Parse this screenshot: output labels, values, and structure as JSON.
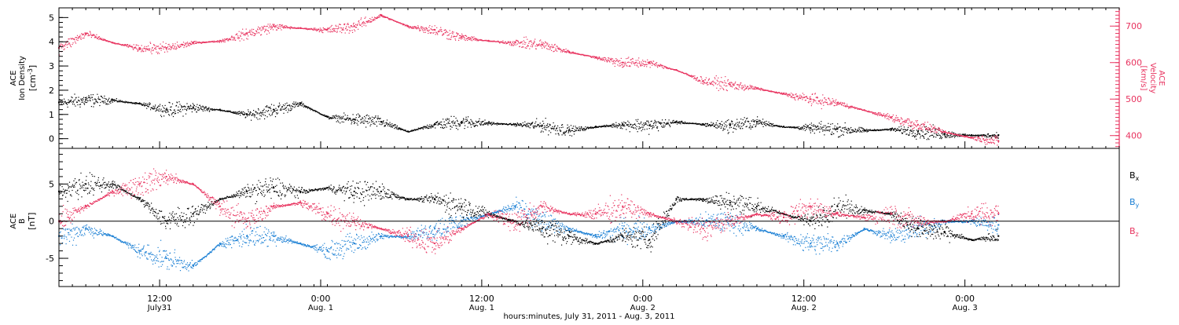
{
  "chart_data": [
    {
      "type": "scatter",
      "panel": "plasma",
      "left_axis": {
        "label_line1": "ACE",
        "label_line2": "Ion Density",
        "units": "[cm",
        "units_sup": "-3",
        "units_end": "]",
        "ylim": [
          -0.4,
          5.4
        ],
        "ticks": [
          "0",
          "1",
          "2",
          "3",
          "4",
          "5"
        ],
        "tick_values": [
          0,
          1,
          2,
          3,
          4,
          5
        ],
        "color": "#000000"
      },
      "right_axis": {
        "label_line1": "ACE",
        "label_line2": "Velocity",
        "units": "[km/s]",
        "ylim": [
          365,
          750
        ],
        "ticks": [
          "400",
          "500",
          "600",
          "700"
        ],
        "tick_values": [
          400,
          500,
          600,
          700
        ],
        "color": "#e8335f"
      },
      "series": [
        {
          "axis": "left",
          "color": "#000000",
          "x": [
            0,
            2,
            4,
            6,
            8,
            10,
            12,
            14,
            16,
            18,
            20,
            22,
            24,
            26,
            28,
            30,
            32,
            34,
            36,
            38,
            40,
            42,
            44,
            46,
            48,
            50,
            52,
            54,
            56,
            58,
            60,
            62,
            64,
            66,
            68,
            70
          ],
          "y": [
            1.5,
            1.6,
            1.6,
            1.45,
            1.2,
            1.3,
            1.2,
            1.0,
            1.2,
            1.45,
            0.9,
            0.8,
            0.7,
            0.3,
            0.6,
            0.7,
            0.65,
            0.6,
            0.55,
            0.35,
            0.5,
            0.6,
            0.55,
            0.7,
            0.6,
            0.55,
            0.7,
            0.5,
            0.45,
            0.4,
            0.35,
            0.4,
            0.3,
            0.2,
            0.15,
            0.15
          ]
        },
        {
          "axis": "right",
          "color": "#e8335f",
          "x": [
            0,
            2,
            4,
            6,
            8,
            10,
            12,
            14,
            16,
            18,
            20,
            22,
            24,
            26,
            28,
            30,
            32,
            34,
            36,
            38,
            40,
            42,
            44,
            46,
            48,
            50,
            52,
            54,
            56,
            58,
            60,
            62,
            64,
            66,
            68,
            70
          ],
          "y": [
            640,
            680,
            655,
            640,
            640,
            655,
            660,
            680,
            700,
            695,
            690,
            700,
            730,
            700,
            690,
            670,
            660,
            655,
            650,
            630,
            615,
            600,
            600,
            580,
            550,
            540,
            530,
            515,
            500,
            490,
            470,
            450,
            430,
            410,
            395,
            385
          ]
        }
      ]
    },
    {
      "type": "scatter",
      "panel": "magnetic-field",
      "left_axis": {
        "label_line1": "ACE",
        "label_line2": "B",
        "units": "[nT]",
        "ylim": [
          -8.8,
          9.8
        ],
        "ticks": [
          "-5",
          "0",
          "5"
        ],
        "tick_values": [
          -5,
          0,
          5
        ],
        "color": "#000000"
      },
      "zero_line": true,
      "legend": [
        {
          "label": "B",
          "sub": "x",
          "color": "#000000"
        },
        {
          "label": "B",
          "sub": "y",
          "color": "#1a7fd4"
        },
        {
          "label": "B",
          "sub": "z",
          "color": "#e8335f"
        }
      ],
      "legend_position": "right",
      "series": [
        {
          "color": "#000000",
          "x": [
            0,
            2,
            4,
            6,
            8,
            10,
            12,
            14,
            16,
            18,
            20,
            22,
            24,
            26,
            28,
            30,
            32,
            34,
            36,
            38,
            40,
            42,
            44,
            46,
            48,
            50,
            52,
            54,
            56,
            58,
            60,
            62,
            64,
            66,
            68,
            70
          ],
          "y": [
            4,
            5,
            5,
            3,
            0,
            1,
            3,
            4,
            4.5,
            4,
            4.5,
            4,
            4,
            3,
            3,
            2,
            1,
            0,
            -1,
            -2,
            -3,
            -2,
            -2.5,
            3,
            3,
            2.5,
            2,
            1,
            0,
            2,
            1.5,
            1,
            -1,
            -1.5,
            -2.5,
            -2
          ]
        },
        {
          "color": "#1a7fd4",
          "x": [
            0,
            2,
            4,
            6,
            8,
            10,
            12,
            14,
            16,
            18,
            20,
            22,
            24,
            26,
            28,
            30,
            32,
            34,
            36,
            38,
            40,
            42,
            44,
            46,
            48,
            50,
            52,
            54,
            56,
            58,
            60,
            62,
            64,
            66,
            68,
            70
          ],
          "y": [
            -2,
            -1,
            -2,
            -4,
            -5,
            -6,
            -3,
            -2,
            -2,
            -3,
            -4,
            -3,
            -2,
            -2,
            -1,
            0,
            1,
            2,
            0,
            -1,
            -2,
            -1,
            -1,
            0,
            0,
            0,
            -1,
            -2,
            -3,
            -3,
            -1,
            -2,
            -1,
            0,
            0,
            -0.5
          ]
        },
        {
          "color": "#e8335f",
          "x": [
            0,
            2,
            4,
            6,
            8,
            10,
            12,
            14,
            16,
            18,
            20,
            22,
            24,
            26,
            28,
            30,
            32,
            34,
            36,
            38,
            40,
            42,
            44,
            46,
            48,
            50,
            52,
            54,
            56,
            58,
            60,
            62,
            64,
            66,
            68,
            70
          ],
          "y": [
            0,
            2,
            4,
            5,
            6,
            5,
            2,
            0,
            2,
            2.5,
            1,
            0,
            -1,
            -2,
            -3,
            -1,
            1,
            0,
            2,
            1,
            1,
            2,
            1,
            0,
            -1,
            0,
            1,
            0.5,
            2,
            1,
            0.5,
            1,
            0,
            0,
            1,
            1
          ]
        }
      ]
    }
  ],
  "x_axis": {
    "range_hours": [
      0,
      79
    ],
    "ticks": [
      {
        "hours": 7.5,
        "time": "12:00",
        "date": "July31"
      },
      {
        "hours": 19.5,
        "time": "0:00",
        "date": "Aug. 1"
      },
      {
        "hours": 31.5,
        "time": "12:00",
        "date": "Aug. 1"
      },
      {
        "hours": 43.5,
        "time": "0:00",
        "date": "Aug. 2"
      },
      {
        "hours": 55.5,
        "time": "12:00",
        "date": "Aug. 2"
      },
      {
        "hours": 67.5,
        "time": "0:00",
        "date": "Aug. 3"
      }
    ],
    "title": "hours:minutes, July 31, 2011 - Aug.  3, 2011"
  }
}
